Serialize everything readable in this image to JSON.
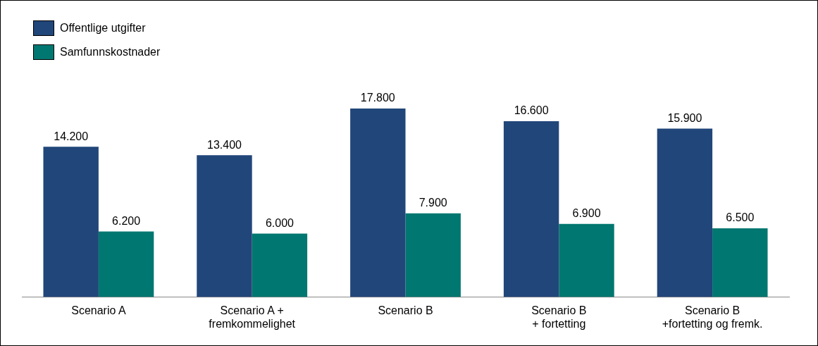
{
  "chart_data": {
    "type": "bar",
    "categories": [
      "Scenario A",
      "Scenario A +\nfremkommelighet",
      "Scenario B",
      "Scenario B\n+ fortetting",
      "Scenario B\n+fortetting og fremk."
    ],
    "series": [
      {
        "name": "Offentlige utgifter",
        "color": "#21467a",
        "values": [
          14200,
          13400,
          17800,
          16600,
          15900
        ],
        "value_labels": [
          "14.200",
          "13.400",
          "17.800",
          "16.600",
          "15.900"
        ]
      },
      {
        "name": "Samfunnskostnader",
        "color": "#007770",
        "values": [
          6200,
          6000,
          7900,
          6900,
          6500
        ],
        "value_labels": [
          "6.200",
          "6.000",
          "7.900",
          "6.900",
          "6.500"
        ]
      }
    ],
    "legend": "top left"
  }
}
